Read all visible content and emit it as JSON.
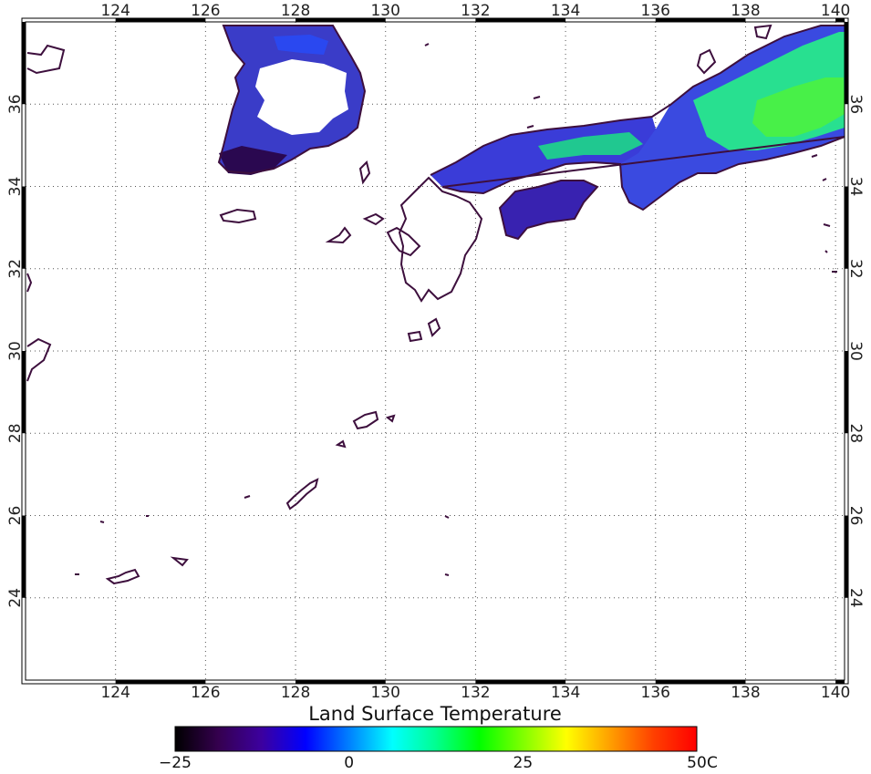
{
  "title": "Land Surface Temperature",
  "longitude": {
    "range": [
      122,
      140.2
    ],
    "ticks": [
      124,
      126,
      128,
      130,
      132,
      134,
      136,
      138,
      140
    ],
    "tick_labels": [
      "124",
      "126",
      "128",
      "130",
      "132",
      "134",
      "136",
      "138",
      "140"
    ]
  },
  "latitude": {
    "range": [
      22,
      38
    ],
    "ticks": [
      24,
      26,
      28,
      30,
      32,
      34,
      36
    ],
    "tick_labels": [
      "24",
      "26",
      "28",
      "30",
      "32",
      "34",
      "36"
    ]
  },
  "grid": true,
  "colorbar": {
    "min": -25,
    "max": 50,
    "labels": [
      "−25",
      "0",
      "25",
      "50"
    ],
    "unit": "C",
    "colors": [
      "#000000",
      "#35004f",
      "#3c00a0",
      "#0000ff",
      "#0080ff",
      "#00ffff",
      "#00ff90",
      "#00ff00",
      "#80ff00",
      "#ffff00",
      "#ffa000",
      "#ff4000",
      "#ff0000"
    ]
  },
  "colors": {
    "coastline": "#3d0f3d",
    "frame": "#000000",
    "grid": "#555555",
    "background": "#ffffff"
  }
}
